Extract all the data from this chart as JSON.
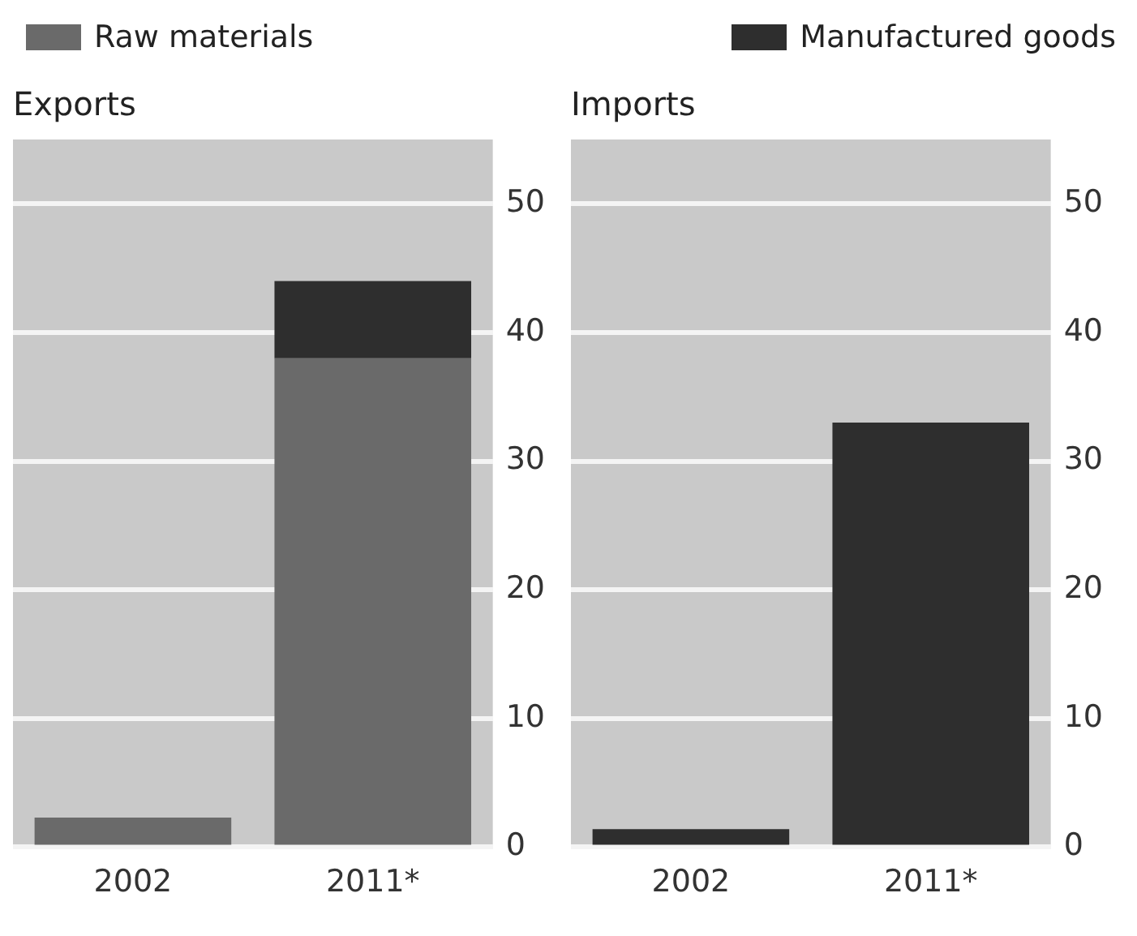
{
  "chart_data": [
    {
      "type": "bar",
      "title": "Exports",
      "categories": [
        "2002",
        "2011*"
      ],
      "stacked": true,
      "ylim": [
        0,
        55
      ],
      "yticks": [
        0,
        10,
        20,
        30,
        40,
        50
      ],
      "grid": "y",
      "legend": "top",
      "series": [
        {
          "name": "Raw materials",
          "color": "#6a6a6a",
          "values": [
            2.3,
            38
          ]
        },
        {
          "name": "Manufactured goods",
          "color": "#2e2e2e",
          "values": [
            null,
            6
          ]
        }
      ]
    },
    {
      "type": "bar",
      "title": "Imports",
      "categories": [
        "2002",
        "2011*"
      ],
      "stacked": true,
      "ylim": [
        0,
        55
      ],
      "yticks": [
        0,
        10,
        20,
        30,
        40,
        50
      ],
      "grid": "y",
      "series": [
        {
          "color": "#6a6a6a",
          "values": [
            null,
            null
          ]
        },
        {
          "color": "#2e2e2e",
          "values": [
            1.4,
            33
          ]
        }
      ]
    }
  ]
}
